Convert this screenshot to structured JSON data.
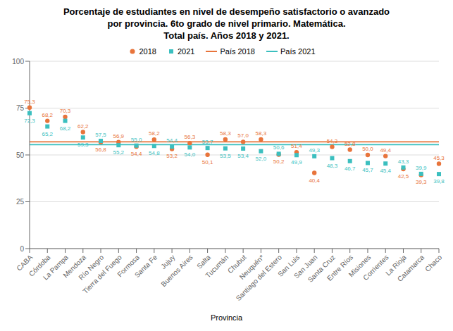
{
  "chart_data": {
    "type": "scatter",
    "title": "Porcentaje de estudiantes en nivel de desempeño satisfactorio o avanzado\npor provincia. 6to grado de nivel primario. Matemática.\nTotal país. Años 2018 y 2021.",
    "x_label": "Provincia",
    "categories": [
      "CABA",
      "Córdoba",
      "La Pampa",
      "Mendoza",
      "Río Negro",
      "Tierra del Fuego",
      "Formosa",
      "Santa Fe",
      "Jujuy",
      "Buenos Aires",
      "Salta",
      "Tucumán",
      "Chubut",
      "Neuquén*",
      "Santiago del Estero",
      "San Luis",
      "San Juan",
      "Santa Cruz",
      "Entre Ríos",
      "Misiones",
      "Corrientes",
      "La Rioja",
      "Catamarca",
      "Chaco"
    ],
    "series": [
      {
        "name": "2018",
        "color": "#E8743B",
        "marker": "circle",
        "values": [
          75.3,
          68.2,
          70.3,
          62.2,
          56.8,
          56.9,
          54.4,
          58.2,
          53.2,
          56.3,
          50.1,
          58.3,
          57.0,
          58.3,
          50.2,
          51.4,
          40.4,
          54.3,
          52.8,
          50.0,
          49.4,
          42.5,
          39.3,
          45.3
        ],
        "value_labels": [
          "75,3",
          "68,2",
          "70,3",
          "62,2",
          "56,8",
          "56,9",
          "54,4",
          "58,2",
          "53,2",
          "56,3",
          "50,1",
          "58,3",
          "57,0",
          "58,3",
          "50,2",
          "51,4",
          "40,4",
          "54,3",
          "52,8",
          "50,0",
          "49,4",
          "42,5",
          "39,3",
          "45,3"
        ]
      },
      {
        "name": "2021",
        "color": "#3BBFBF",
        "marker": "square",
        "values": [
          72.3,
          65.2,
          68.2,
          59.3,
          57.5,
          55.2,
          55.0,
          54.8,
          54.4,
          54.0,
          53.7,
          53.5,
          53.4,
          52.0,
          50.6,
          49.9,
          49.3,
          48.3,
          46.7,
          45.7,
          45.4,
          43.3,
          39.9,
          39.8
        ],
        "value_labels": [
          "72,3",
          "65,2",
          "68,2",
          "59,3",
          "57,5",
          "55,2",
          "55,0",
          "54,8",
          "54,4",
          "54,0",
          "53,7",
          "53,5",
          "53,4",
          "52,0",
          "50,6",
          "49,9",
          "49,3",
          "48,3",
          "46,7",
          "45,7",
          "45,4",
          "43,3",
          "39,9",
          "39,8"
        ]
      }
    ],
    "reference_lines": [
      {
        "name": "País 2018",
        "value": 57.0,
        "color": "#E8743B"
      },
      {
        "name": "País 2021",
        "value": 55.5,
        "color": "#3BBFBF"
      }
    ],
    "ylim": [
      0,
      100
    ],
    "yticks": [
      0,
      25,
      50,
      75,
      100
    ],
    "grid": true,
    "legend": "top",
    "data_labels": true
  }
}
